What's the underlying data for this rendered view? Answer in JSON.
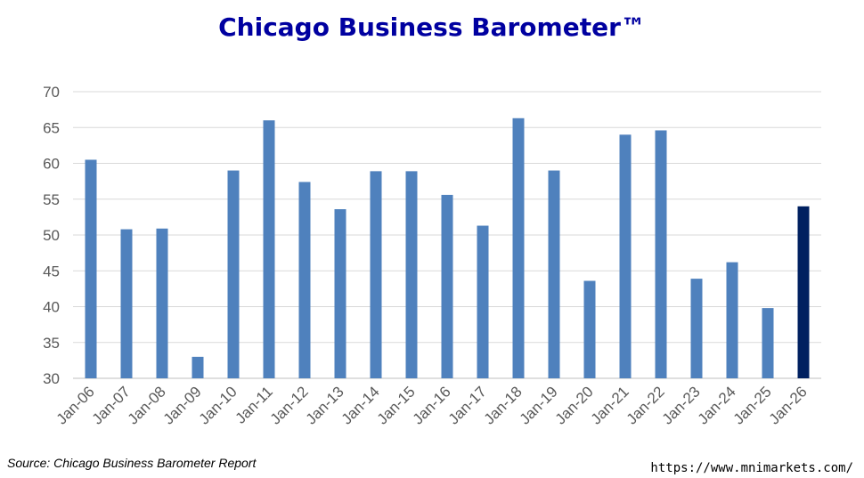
{
  "chart_data": {
    "type": "bar",
    "title": "Chicago Business Barometer™",
    "categories": [
      "Jan-06",
      "Jan-07",
      "Jan-08",
      "Jan-09",
      "Jan-10",
      "Jan-11",
      "Jan-12",
      "Jan-13",
      "Jan-14",
      "Jan-15",
      "Jan-16",
      "Jan-17",
      "Jan-18",
      "Jan-19",
      "Jan-20",
      "Jan-21",
      "Jan-22",
      "Jan-23",
      "Jan-24",
      "Jan-25",
      "Jan-26"
    ],
    "values": [
      60.5,
      50.8,
      50.9,
      33.0,
      59.0,
      66.0,
      57.4,
      53.6,
      58.9,
      58.9,
      55.6,
      51.3,
      66.3,
      59.0,
      43.6,
      64.0,
      64.6,
      43.9,
      46.2,
      39.8,
      54.0
    ],
    "ylim": [
      30,
      70
    ],
    "yticks": [
      "30",
      "35",
      "40",
      "45",
      "50",
      "55",
      "60",
      "65",
      "70"
    ],
    "grid": true,
    "colors": {
      "bar": "#4f81bd",
      "highlight": "#002060",
      "grid": "#d9d9d9",
      "title": "#0000a0"
    },
    "highlight_category": "Jan-26"
  },
  "footer": {
    "source": "Source: Chicago Business Barometer Report",
    "url": "https://www.mnimarkets.com/"
  }
}
